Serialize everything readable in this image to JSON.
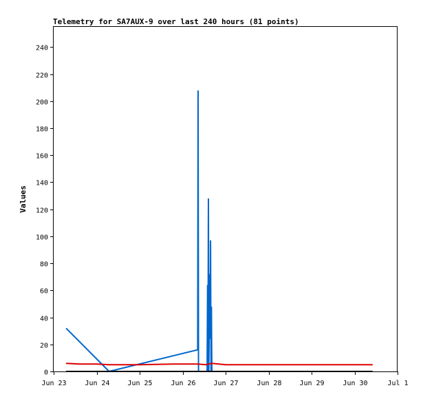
{
  "chart_data": {
    "type": "line",
    "title": "Telemetry for SA7AUX-9 over last 240 hours (81 points)",
    "ylabel": "Values",
    "xlabel": "",
    "x_unit": "days since Jun 23 00:00",
    "xlim": [
      0,
      8
    ],
    "ylim": [
      0,
      255
    ],
    "x_ticks": [
      {
        "x": 0,
        "label": "Jun 23"
      },
      {
        "x": 1,
        "label": "Jun 24"
      },
      {
        "x": 2,
        "label": "Jun 25"
      },
      {
        "x": 3,
        "label": "Jun 26"
      },
      {
        "x": 4,
        "label": "Jun 27"
      },
      {
        "x": 5,
        "label": "Jun 28"
      },
      {
        "x": 6,
        "label": "Jun 29"
      },
      {
        "x": 7,
        "label": "Jun 30"
      },
      {
        "x": 8,
        "label": "Jul 1"
      }
    ],
    "y_ticks": [
      0,
      20,
      40,
      60,
      80,
      100,
      120,
      140,
      160,
      180,
      200,
      220,
      240
    ],
    "series": [
      {
        "name": "",
        "color": "#0066cc",
        "points": [
          [
            0.29,
            32
          ],
          [
            1.29,
            0
          ],
          [
            3.35,
            16
          ],
          [
            3.36,
            208
          ],
          [
            3.37,
            0
          ],
          [
            3.57,
            0
          ],
          [
            3.58,
            64
          ],
          [
            3.59,
            0
          ],
          [
            3.6,
            128
          ],
          [
            3.61,
            0
          ],
          [
            3.63,
            72
          ],
          [
            3.64,
            24
          ],
          [
            3.65,
            97
          ],
          [
            3.66,
            0
          ],
          [
            3.67,
            48
          ],
          [
            3.68,
            0
          ]
        ]
      },
      {
        "name": "",
        "color": "#dd0000",
        "points": [
          [
            0.29,
            6
          ],
          [
            0.6,
            5.5
          ],
          [
            1.0,
            5.5
          ],
          [
            1.29,
            5
          ],
          [
            2.0,
            5
          ],
          [
            2.8,
            5.5
          ],
          [
            3.35,
            5.5
          ],
          [
            3.55,
            5
          ],
          [
            3.68,
            6
          ],
          [
            4.0,
            5
          ],
          [
            5.0,
            5
          ],
          [
            6.0,
            5
          ],
          [
            7.42,
            5
          ]
        ]
      },
      {
        "name": "",
        "color": "#000000",
        "points": [
          [
            0.29,
            0
          ],
          [
            7.42,
            0
          ]
        ]
      }
    ]
  }
}
